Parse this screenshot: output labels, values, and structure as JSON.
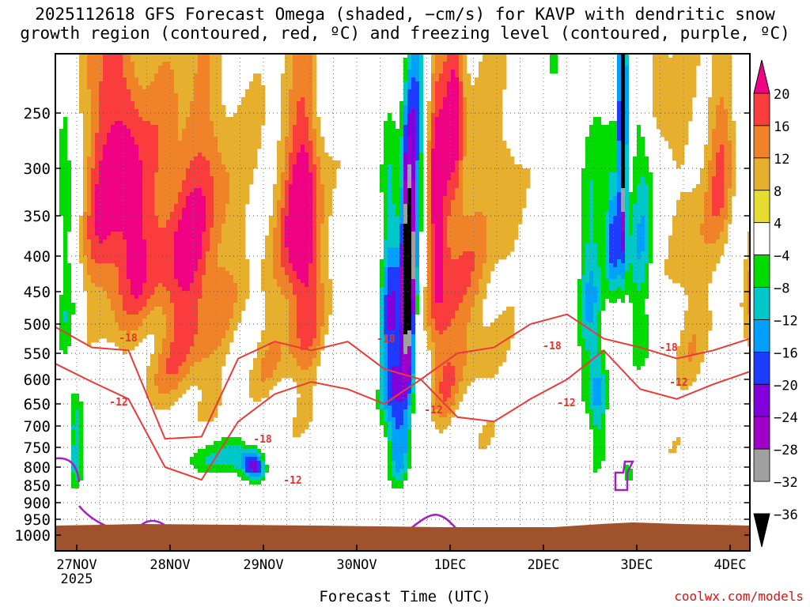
{
  "title": "2025112618 GFS Forecast Omega (shaded, −cm/s) for KAVP with dendritic snow\ngrowth region (contoured, red, ºC) and freezing level (contoured, purple, ºC)",
  "credit": "coolwx.com/models",
  "chart_data": {
    "type": "heatmap",
    "title": "2025112618 GFS Forecast Omega (shaded, −cm/s) for KAVP with dendritic snow growth region (contoured, red, ºC) and freezing level (contoured, purple, ºC)",
    "xlabel": "Forecast Time (UTC)",
    "ylabel": "",
    "x_ticks": [
      "27NOV",
      "28NOV",
      "29NOV",
      "30NOV",
      "1DEC",
      "2DEC",
      "3DEC",
      "4DEC"
    ],
    "x_year_label": "2025",
    "y_ticks": [
      250,
      300,
      350,
      400,
      450,
      500,
      550,
      600,
      650,
      700,
      750,
      800,
      850,
      900,
      950,
      1000
    ],
    "y_range_hpa": [
      200,
      1020
    ],
    "x_range_days": [
      -0.25,
      7.3
    ],
    "colorbar": {
      "levels": [
        -36,
        -32,
        -28,
        -24,
        -20,
        -16,
        -12,
        -8,
        -4,
        4,
        8,
        12,
        16,
        20
      ],
      "tick_labels": [
        "20",
        "16",
        "12",
        "8",
        "4",
        "−4",
        "−8",
        "−12",
        "−16",
        "−20",
        "−24",
        "−28",
        "−32",
        "−36"
      ],
      "colors": [
        "#000000",
        "#a0a0a0",
        "#a000c8",
        "#8200dc",
        "#1e3cff",
        "#00a0ff",
        "#00c8c8",
        "#00dc00",
        "#ffffff",
        "#e6dc32",
        "#e6af2d",
        "#f08228",
        "#fa3c3c",
        "#f00082"
      ]
    },
    "dendritic_contours": [
      {
        "label": "-18",
        "pressure_hpa": [
          505,
          540,
          545,
          730,
          725,
          560,
          530,
          545,
          530,
          580,
          600,
          550,
          540,
          500,
          485,
          525,
          540,
          560,
          545,
          525
        ]
      },
      {
        "label": "-12",
        "pressure_hpa": [
          570,
          605,
          640,
          800,
          835,
          690,
          630,
          605,
          620,
          650,
          600,
          680,
          690,
          640,
          600,
          545,
          620,
          640,
          610,
          585
        ]
      }
    ],
    "contour_labels": [
      {
        "text": "-18",
        "color": "#e83030"
      },
      {
        "text": "-12",
        "color": "#e83030"
      },
      {
        "text": "-18",
        "color": "#e83030"
      },
      {
        "text": "-12",
        "color": "#e83030"
      },
      {
        "text": "-18",
        "color": "#e83030"
      },
      {
        "text": "-12",
        "color": "#e83030"
      },
      {
        "text": "-18",
        "color": "#e83030"
      },
      {
        "text": "-12",
        "color": "#e83030"
      },
      {
        "text": "-18",
        "color": "#e83030"
      },
      {
        "text": "-12",
        "color": "#e83030"
      }
    ],
    "freezing_level_contour": {
      "label": "0",
      "color": "#a020c0"
    },
    "terrain_color": "#a0522d"
  }
}
